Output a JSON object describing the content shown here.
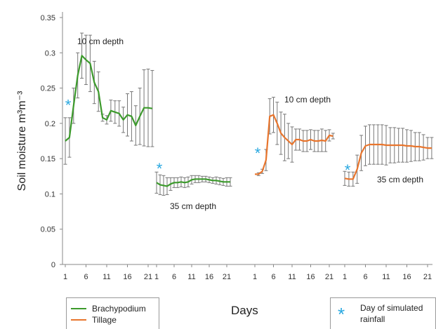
{
  "chart_data": {
    "type": "line",
    "ylabel": "Soil moisture m³m⁻³",
    "xlabel": "Days",
    "ylim": [
      0,
      0.35
    ],
    "yticks": [
      "0",
      "0.05",
      "0.1",
      "0.15",
      "0.2",
      "0.25",
      "0.3",
      "0.35"
    ],
    "xticks": [
      "1",
      "6",
      "11",
      "16",
      "21"
    ],
    "grid": false,
    "legend_position": "bottom-left",
    "colors": {
      "Brachypodium": "#3c9a2c",
      "Tillage": "#e8752d",
      "rain_marker": "#29a8e0",
      "error_bar": "#777777"
    },
    "series": [
      {
        "name": "Brachypodium",
        "color": "#3c9a2c",
        "annotation": "10 cm depth",
        "x": [
          1,
          2,
          3,
          4,
          5,
          6,
          7,
          8,
          9,
          10,
          11,
          12,
          13,
          14,
          15,
          16,
          17,
          18,
          19,
          20,
          21,
          22
        ],
        "y": [
          0.175,
          0.18,
          0.225,
          0.268,
          0.296,
          0.29,
          0.285,
          0.258,
          0.245,
          0.208,
          0.205,
          0.218,
          0.216,
          0.214,
          0.205,
          0.212,
          0.21,
          0.197,
          0.21,
          0.222,
          0.222,
          0.221
        ],
        "err": [
          0.033,
          0.028,
          0.025,
          0.032,
          0.032,
          0.035,
          0.04,
          0.03,
          0.028,
          0.005,
          0.006,
          0.015,
          0.016,
          0.018,
          0.018,
          0.03,
          0.035,
          0.028,
          0.04,
          0.054,
          0.055,
          0.054
        ]
      },
      {
        "name": "Brachypodium",
        "color": "#3c9a2c",
        "annotation": "35 cm depth",
        "x": [
          1,
          2,
          3,
          4,
          5,
          6,
          7,
          8,
          9,
          10,
          11,
          12,
          13,
          14,
          15,
          16,
          17,
          18,
          19,
          20,
          21,
          22
        ],
        "y": [
          0.116,
          0.113,
          0.112,
          0.111,
          0.114,
          0.116,
          0.116,
          0.117,
          0.116,
          0.117,
          0.12,
          0.121,
          0.121,
          0.121,
          0.121,
          0.12,
          0.119,
          0.119,
          0.118,
          0.117,
          0.117,
          0.117
        ],
        "err": [
          0.015,
          0.014,
          0.014,
          0.012,
          0.009,
          0.007,
          0.007,
          0.007,
          0.007,
          0.007,
          0.006,
          0.005,
          0.005,
          0.004,
          0.004,
          0.004,
          0.004,
          0.005,
          0.005,
          0.005,
          0.006,
          0.006
        ]
      },
      {
        "name": "Tillage",
        "color": "#e8752d",
        "annotation": "10 cm depth",
        "x": [
          1,
          2,
          3,
          4,
          5,
          6,
          7,
          8,
          9,
          10,
          11,
          12,
          13,
          14,
          15,
          16,
          17,
          18,
          19,
          20,
          21,
          22
        ],
        "y": [
          0.128,
          0.128,
          0.132,
          0.148,
          0.21,
          0.212,
          0.2,
          0.186,
          0.18,
          0.175,
          0.17,
          0.177,
          0.177,
          0.175,
          0.175,
          0.177,
          0.175,
          0.175,
          0.176,
          0.175,
          0.183,
          0.182
        ],
        "err": [
          0.0,
          0.002,
          0.003,
          0.015,
          0.025,
          0.025,
          0.03,
          0.03,
          0.033,
          0.025,
          0.025,
          0.015,
          0.015,
          0.015,
          0.015,
          0.014,
          0.015,
          0.015,
          0.016,
          0.015,
          0.008,
          0.004
        ]
      },
      {
        "name": "Tillage",
        "color": "#e8752d",
        "annotation": "35 cm depth",
        "x": [
          1,
          2,
          3,
          4,
          5,
          6,
          7,
          8,
          9,
          10,
          11,
          12,
          13,
          14,
          15,
          16,
          17,
          18,
          19,
          20,
          21,
          22
        ],
        "y": [
          0.122,
          0.121,
          0.121,
          0.135,
          0.158,
          0.168,
          0.17,
          0.17,
          0.17,
          0.17,
          0.169,
          0.169,
          0.169,
          0.169,
          0.169,
          0.168,
          0.168,
          0.167,
          0.167,
          0.166,
          0.165,
          0.165
        ],
        "err": [
          0.01,
          0.01,
          0.01,
          0.02,
          0.025,
          0.028,
          0.028,
          0.028,
          0.028,
          0.028,
          0.028,
          0.025,
          0.025,
          0.024,
          0.024,
          0.023,
          0.022,
          0.02,
          0.02,
          0.018,
          0.015,
          0.015
        ]
      }
    ],
    "rainfall_markers": [
      {
        "panel": 0,
        "x": 1,
        "y": 0.228
      },
      {
        "panel": 1,
        "x": 1,
        "y": 0.138
      },
      {
        "panel": 2,
        "x": 1,
        "y": 0.16
      },
      {
        "panel": 3,
        "x": 1,
        "y": 0.136
      }
    ]
  },
  "legend": {
    "series": [
      {
        "label": "Brachypodium",
        "color": "#3c9a2c"
      },
      {
        "label": "Tillage",
        "color": "#e8752d"
      }
    ],
    "rain_label_line1": "Day of simulated",
    "rain_label_line2": "rainfall",
    "rain_symbol": "*",
    "x_title": "Days"
  }
}
